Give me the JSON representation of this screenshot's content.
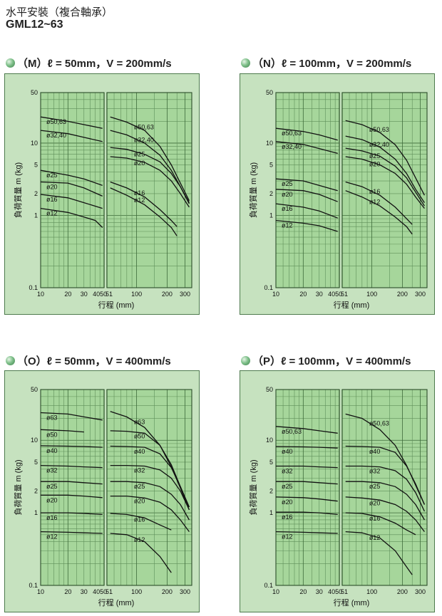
{
  "header": {
    "title": "水平安裝（複合軸承）",
    "model": "GML12~63"
  },
  "chart_data": [
    {
      "id": "M",
      "type": "line",
      "title": "（M）ℓ = 50mm，V = 200mm/s",
      "xlabel": "行程 (mm)",
      "ylabel": "負荷質量 m (kg)",
      "xscale": "log",
      "yscale": "log",
      "xlim_left": [
        10,
        50
      ],
      "xlim_right": [
        51,
        350
      ],
      "ylim": [
        0.1,
        50
      ],
      "xticks_left": [
        "10",
        "20",
        "30",
        "4050"
      ],
      "xticks_right": [
        "51",
        "100",
        "200",
        "300"
      ],
      "yticks": [
        "0.1",
        "1",
        "2",
        "5",
        "10",
        "50"
      ],
      "series": [
        {
          "name": "ø50,63",
          "left_x": [
            10,
            20,
            30,
            48
          ],
          "left_y": [
            23,
            20,
            18,
            16
          ],
          "right_x": [
            55,
            80,
            120,
            170,
            220,
            270,
            330
          ],
          "right_y": [
            23,
            19.5,
            15,
            9,
            5,
            2.8,
            1.6
          ]
        },
        {
          "name": "ø32,40",
          "left_x": [
            10,
            20,
            30,
            48
          ],
          "left_y": [
            15,
            13.5,
            12,
            10.5
          ],
          "right_x": [
            55,
            80,
            120,
            170,
            220,
            270,
            330
          ],
          "right_y": [
            15,
            13,
            10,
            6.8,
            4.2,
            2.5,
            1.45
          ]
        },
        {
          "name": "ø25",
          "left_x": [
            10,
            20,
            30,
            48
          ],
          "left_y": [
            4.2,
            3.6,
            3.2,
            2.6
          ],
          "right_x": [
            55,
            80,
            120,
            170,
            220,
            270,
            330
          ],
          "right_y": [
            8.7,
            8.2,
            7,
            5.5,
            3.8,
            2.5,
            1.5
          ]
        },
        {
          "name": "ø20",
          "left_x": [
            10,
            20,
            30,
            48
          ],
          "left_y": [
            2.9,
            2.8,
            2.4,
            1.85
          ],
          "right_x": [
            55,
            80,
            120,
            170,
            220,
            270,
            330
          ],
          "right_y": [
            6.5,
            6.2,
            5.4,
            4.2,
            3,
            2,
            1.3
          ]
        },
        {
          "name": "ø16",
          "left_x": [
            10,
            20,
            30,
            48
          ],
          "left_y": [
            1.95,
            1.75,
            1.5,
            1.25
          ],
          "right_x": [
            55,
            80,
            120,
            170,
            220,
            250
          ],
          "right_y": [
            2.9,
            2.4,
            1.8,
            1.2,
            0.85,
            0.7
          ]
        },
        {
          "name": "ø12",
          "left_x": [
            10,
            20,
            30,
            40,
            48
          ],
          "left_y": [
            1.25,
            1.1,
            0.95,
            0.85,
            0.68
          ],
          "right_x": [
            55,
            80,
            120,
            170,
            220,
            250
          ],
          "right_y": [
            2.4,
            1.9,
            1.4,
            0.95,
            0.68,
            0.52
          ]
        }
      ]
    },
    {
      "id": "N",
      "type": "line",
      "title": "（N）ℓ = 100mm，V = 200mm/s",
      "xlabel": "行程 (mm)",
      "ylabel": "負荷質量 m (kg)",
      "xscale": "log",
      "yscale": "log",
      "xlim_left": [
        10,
        50
      ],
      "xlim_right": [
        51,
        350
      ],
      "ylim": [
        0.1,
        50
      ],
      "xticks_left": [
        "10",
        "20",
        "30",
        "4050"
      ],
      "xticks_right": [
        "51",
        "100",
        "200",
        "300"
      ],
      "yticks": [
        "0.1",
        "1",
        "2",
        "5",
        "10",
        "50"
      ],
      "series": [
        {
          "name": "ø50,63",
          "left_x": [
            10,
            20,
            30,
            48
          ],
          "left_y": [
            16,
            14.5,
            13,
            11
          ],
          "right_x": [
            55,
            80,
            120,
            170,
            220,
            270,
            330
          ],
          "right_y": [
            20.5,
            18,
            14,
            9.5,
            5.8,
            3.3,
            1.9
          ]
        },
        {
          "name": "ø32,40",
          "left_x": [
            10,
            20,
            30,
            48
          ],
          "left_y": [
            10.5,
            9.6,
            8.4,
            7.2
          ],
          "right_x": [
            55,
            80,
            120,
            170,
            220,
            270,
            330
          ],
          "right_y": [
            12.5,
            11.2,
            8.8,
            6,
            3.8,
            2.3,
            1.5
          ]
        },
        {
          "name": "ø25",
          "left_x": [
            10,
            20,
            30,
            48
          ],
          "left_y": [
            3.2,
            3.0,
            2.6,
            2.2
          ],
          "right_x": [
            55,
            80,
            120,
            170,
            220,
            270,
            330
          ],
          "right_y": [
            8.5,
            7.8,
            6.6,
            4.8,
            3.3,
            2.1,
            1.35
          ]
        },
        {
          "name": "ø20",
          "left_x": [
            10,
            20,
            30,
            48
          ],
          "left_y": [
            2.3,
            2.2,
            1.95,
            1.55
          ],
          "right_x": [
            55,
            80,
            120,
            170,
            220,
            270,
            330
          ],
          "right_y": [
            6.5,
            6,
            5,
            3.8,
            2.7,
            1.8,
            1.25
          ]
        },
        {
          "name": "ø16",
          "left_x": [
            10,
            20,
            30,
            48
          ],
          "left_y": [
            1.45,
            1.3,
            1.15,
            0.92
          ],
          "right_x": [
            55,
            80,
            120,
            170,
            220,
            250
          ],
          "right_y": [
            2.9,
            2.5,
            1.9,
            1.3,
            0.9,
            0.75
          ]
        },
        {
          "name": "ø12",
          "left_x": [
            10,
            20,
            30,
            48
          ],
          "left_y": [
            0.85,
            0.78,
            0.72,
            0.6
          ],
          "right_x": [
            55,
            80,
            120,
            170,
            220,
            250
          ],
          "right_y": [
            2.2,
            1.8,
            1.35,
            0.95,
            0.7,
            0.55
          ]
        }
      ]
    },
    {
      "id": "O",
      "type": "line",
      "title": "（O）ℓ = 50mm，V = 400mm/s",
      "xlabel": "行程 (mm)",
      "ylabel": "負荷質量 m (kg)",
      "xscale": "log",
      "yscale": "log",
      "xlim_left": [
        10,
        50
      ],
      "xlim_right": [
        51,
        350
      ],
      "ylim": [
        0.1,
        50
      ],
      "xticks_left": [
        "10",
        "20",
        "30",
        "4050"
      ],
      "xticks_right": [
        "51",
        "100",
        "200",
        "300"
      ],
      "yticks": [
        "0.1",
        "1",
        "2",
        "5",
        "10",
        "50"
      ],
      "series": [
        {
          "name": "ø63",
          "left_x": [
            10,
            20,
            30,
            48
          ],
          "left_y": [
            24,
            23,
            21,
            19
          ],
          "right_x": [
            55,
            80,
            120,
            170,
            220,
            270,
            330
          ],
          "right_y": [
            25,
            21,
            15,
            8.5,
            4.3,
            2.2,
            1.1
          ]
        },
        {
          "name": "ø50",
          "left_x": [
            10,
            20,
            30
          ],
          "left_y": [
            14,
            13.5,
            13
          ],
          "right_x": [
            55,
            80,
            120,
            170,
            220,
            270,
            330
          ],
          "right_y": [
            13.5,
            13.3,
            12.5,
            8.5,
            4.6,
            2.3,
            1.2
          ]
        },
        {
          "name": "ø40",
          "left_x": [
            10,
            20,
            30,
            48
          ],
          "left_y": [
            8.4,
            8.3,
            8.2,
            8
          ],
          "right_x": [
            55,
            80,
            120,
            170,
            220,
            270,
            330
          ],
          "right_y": [
            8.3,
            8.2,
            8,
            6.5,
            4.2,
            2.3,
            1.2
          ]
        },
        {
          "name": "ø32",
          "left_x": [
            10,
            20,
            30,
            48
          ],
          "left_y": [
            4.5,
            4.4,
            4.3,
            4.2
          ],
          "right_x": [
            55,
            80,
            120,
            170,
            220,
            270,
            330
          ],
          "right_y": [
            4.5,
            4.5,
            4.4,
            3.9,
            3,
            2,
            1.1
          ]
        },
        {
          "name": "ø25",
          "left_x": [
            10,
            20,
            30,
            48
          ],
          "left_y": [
            2.7,
            2.7,
            2.6,
            2.5
          ],
          "right_x": [
            55,
            80,
            120,
            170,
            220,
            270,
            330
          ],
          "right_y": [
            2.7,
            2.7,
            2.6,
            2.3,
            1.8,
            1.3,
            0.8
          ]
        },
        {
          "name": "ø20",
          "left_x": [
            10,
            20,
            30,
            48
          ],
          "left_y": [
            1.75,
            1.75,
            1.7,
            1.62
          ],
          "right_x": [
            55,
            80,
            120,
            170,
            220,
            270,
            330
          ],
          "right_y": [
            1.7,
            1.7,
            1.6,
            1.4,
            1.1,
            0.8,
            0.55
          ]
        },
        {
          "name": "ø16",
          "left_x": [
            10,
            20,
            30,
            48
          ],
          "left_y": [
            1.0,
            1.0,
            0.98,
            0.95
          ],
          "right_x": [
            55,
            80,
            120,
            170,
            220
          ],
          "right_y": [
            0.98,
            0.95,
            0.85,
            0.68,
            0.58
          ]
        },
        {
          "name": "ø12",
          "left_x": [
            10,
            20,
            30,
            48
          ],
          "left_y": [
            0.55,
            0.54,
            0.53,
            0.52
          ],
          "right_x": [
            55,
            80,
            120,
            170,
            220
          ],
          "right_y": [
            0.52,
            0.5,
            0.4,
            0.25,
            0.15
          ]
        }
      ]
    },
    {
      "id": "P",
      "type": "line",
      "title": "（P）ℓ = 100mm，V = 400mm/s",
      "xlabel": "行程 (mm)",
      "ylabel": "負荷質量 m (kg)",
      "xscale": "log",
      "yscale": "log",
      "xlim_left": [
        10,
        50
      ],
      "xlim_right": [
        51,
        350
      ],
      "ylim": [
        0.1,
        50
      ],
      "xticks_left": [
        "10",
        "20",
        "30",
        "4050"
      ],
      "xticks_right": [
        "51",
        "100",
        "200",
        "300"
      ],
      "yticks": [
        "0.1",
        "1",
        "2",
        "5",
        "10",
        "50"
      ],
      "series": [
        {
          "name": "ø50,63",
          "left_x": [
            10,
            20,
            30,
            48
          ],
          "left_y": [
            15.5,
            14.5,
            13.5,
            12.5
          ],
          "right_x": [
            55,
            80,
            120,
            170,
            220,
            270,
            330
          ],
          "right_y": [
            23,
            20,
            14,
            8.5,
            4.5,
            2.4,
            1.3
          ]
        },
        {
          "name": "ø40",
          "left_x": [
            10,
            20,
            30,
            48
          ],
          "left_y": [
            8.2,
            8.1,
            8,
            7.8
          ],
          "right_x": [
            55,
            80,
            120,
            170,
            220,
            270,
            330
          ],
          "right_y": [
            8.3,
            8.2,
            8,
            6.8,
            4.4,
            2.5,
            1.3
          ]
        },
        {
          "name": "ø32",
          "left_x": [
            10,
            20,
            30,
            48
          ],
          "left_y": [
            4.4,
            4.4,
            4.3,
            4.2
          ],
          "right_x": [
            55,
            80,
            120,
            170,
            220,
            270,
            330
          ],
          "right_y": [
            4.4,
            4.4,
            4.3,
            3.8,
            2.9,
            1.9,
            1.05
          ]
        },
        {
          "name": "ø25",
          "left_x": [
            10,
            20,
            30,
            48
          ],
          "left_y": [
            2.7,
            2.7,
            2.6,
            2.5
          ],
          "right_x": [
            55,
            80,
            120,
            170,
            220,
            270,
            330
          ],
          "right_y": [
            2.7,
            2.7,
            2.6,
            2.3,
            1.8,
            1.3,
            0.8
          ]
        },
        {
          "name": "ø20",
          "left_x": [
            10,
            20,
            30,
            48
          ],
          "left_y": [
            1.65,
            1.62,
            1.55,
            1.45
          ],
          "right_x": [
            55,
            80,
            120,
            170,
            220,
            270,
            330
          ],
          "right_y": [
            1.65,
            1.6,
            1.5,
            1.3,
            1.05,
            0.8,
            0.55
          ]
        },
        {
          "name": "ø16",
          "left_x": [
            10,
            20,
            30,
            48
          ],
          "left_y": [
            1.02,
            1.02,
            1.0,
            0.95
          ],
          "right_x": [
            55,
            80,
            120,
            170,
            220,
            270
          ],
          "right_y": [
            1.0,
            0.98,
            0.88,
            0.72,
            0.58,
            0.5
          ]
        },
        {
          "name": "ø12",
          "left_x": [
            10,
            20,
            30,
            48
          ],
          "left_y": [
            0.55,
            0.54,
            0.53,
            0.52
          ],
          "right_x": [
            55,
            80,
            120,
            170,
            220,
            250
          ],
          "right_y": [
            0.55,
            0.53,
            0.45,
            0.3,
            0.18,
            0.14
          ]
        }
      ]
    }
  ]
}
